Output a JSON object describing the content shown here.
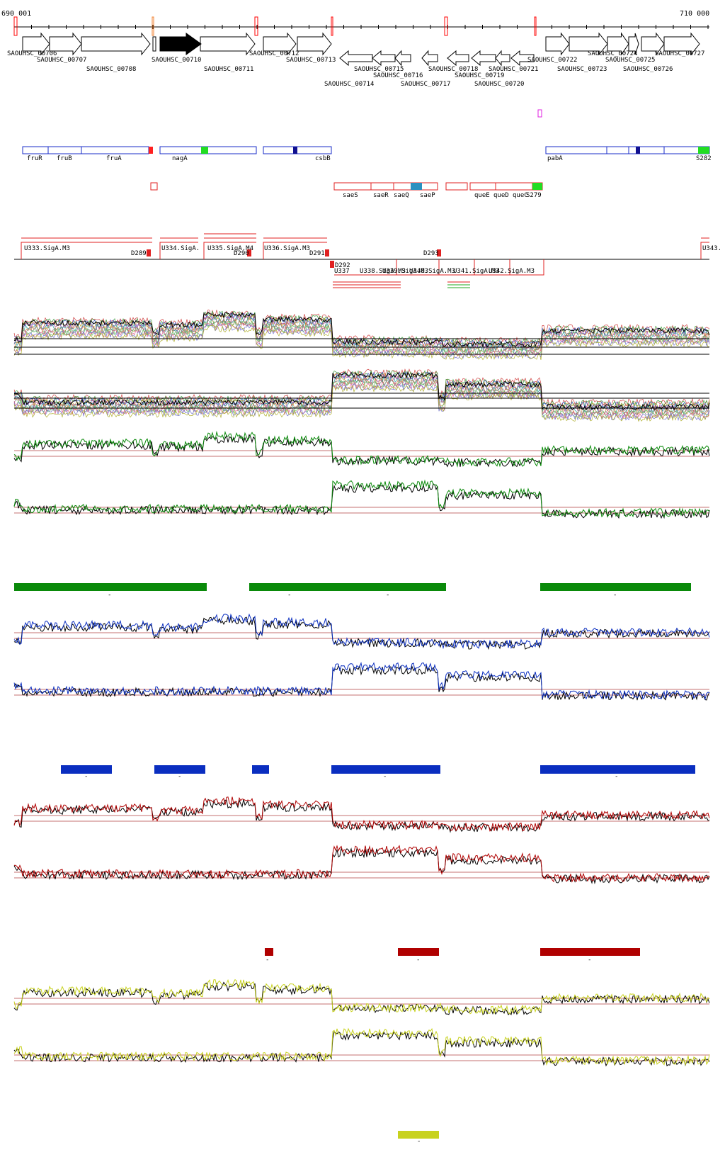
{
  "coordinates": {
    "start": "690 001",
    "end": "710 000"
  },
  "colors": {
    "green": "#0a8a0a",
    "blue": "#0a2ec0",
    "red": "#b00000",
    "yellow": "#c8d21e",
    "annotation_red": "#e02020",
    "gene_blue": "#1a2ec8",
    "magenta": "#e020e0",
    "black": "#000000"
  },
  "orfs_forward": [
    "SAOUHSC_00706",
    "SAOUHSC_00707",
    "SAOUHSC_00708",
    "SAOUHSC_00710",
    "SAOUHSC_00711",
    "SAOUHSC_00712",
    "SAOUHSC_00713",
    "SAOUHSC_00722",
    "SAOUHSC_00723",
    "SAOUHSC_00724",
    "SAOUHSC_00725",
    "SAOUHSC_00726",
    "SAOUHSC_00727"
  ],
  "orfs_reverse": [
    "SAOUHSC_00714",
    "SAOUHSC_00715",
    "SAOUHSC_00716",
    "SAOUHSC_00717",
    "SAOUHSC_00718",
    "SAOUHSC_00719",
    "SAOUHSC_00720",
    "SAOUHSC_00721"
  ],
  "highlighted_orf": "SAOUHSC_00710",
  "genes_forward": [
    "fruR",
    "fruB",
    "fruA",
    "nagA",
    "csbB",
    "pabA",
    "S282"
  ],
  "genes_reverse": [
    "saeS",
    "saeR",
    "saeQ",
    "saeP",
    "queE",
    "queD",
    "queC",
    "S279"
  ],
  "promoters_forward": [
    "U333.SigA.M3",
    "U334.SigA.",
    "U335.SigA.M4",
    "U336.SigA.M3",
    "U343."
  ],
  "promoters_reverse": [
    "U337",
    "U338.SigA.M3",
    "U339.SigA.M3",
    "U340.SigA.M3",
    "U341.SigA.M3",
    "U342.SigA.M3"
  ],
  "terminators": [
    "D289",
    "D290",
    "D291",
    "D292",
    "D293"
  ],
  "condition_bar_marks": [
    "-",
    "-",
    "-",
    "-",
    "-",
    "-",
    "-",
    "-",
    "-",
    "-",
    "-",
    "-",
    "-"
  ]
}
